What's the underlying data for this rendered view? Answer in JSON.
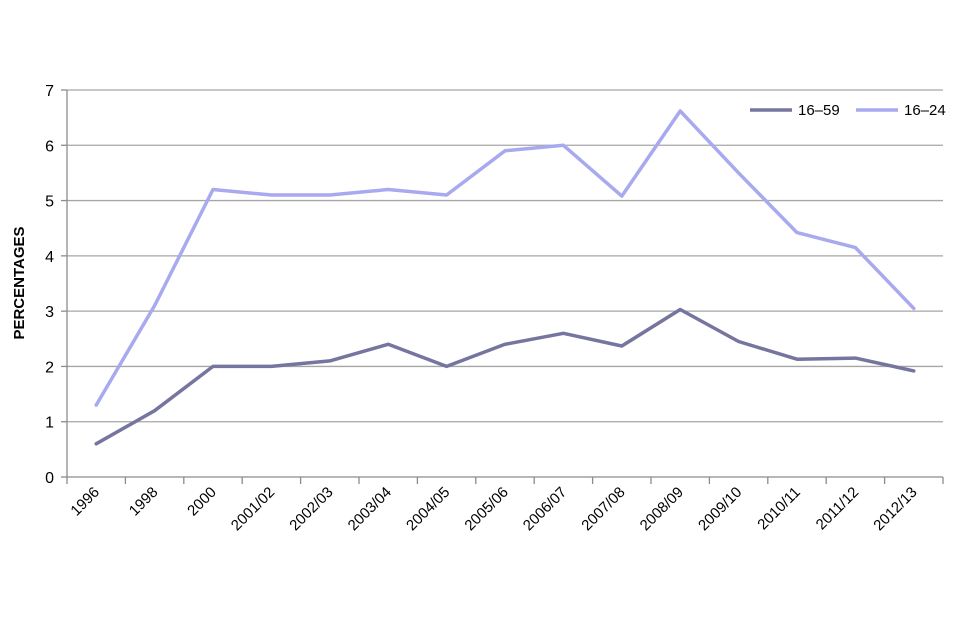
{
  "chart_data": {
    "type": "line",
    "title": "",
    "xlabel": "",
    "ylabel": "PERCENTAGES",
    "ylim": [
      0,
      7
    ],
    "yticks": [
      0,
      1,
      2,
      3,
      4,
      5,
      6,
      7
    ],
    "grid": true,
    "legend_position": "top-right",
    "categories": [
      "1996",
      "1998",
      "2000",
      "2001/02",
      "2002/03",
      "2003/04",
      "2004/05",
      "2005/06",
      "2006/07",
      "2007/08",
      "2008/09",
      "2009/10",
      "2010/11",
      "2011/12",
      "2012/13"
    ],
    "series": [
      {
        "name": "16–59",
        "color": "#7575a0",
        "values": [
          0.6,
          1.2,
          2.0,
          2.0,
          2.1,
          2.4,
          2.0,
          2.4,
          2.6,
          2.37,
          3.03,
          2.45,
          2.13,
          2.15,
          1.92
        ]
      },
      {
        "name": "16–24",
        "color": "#a9a9f0",
        "values": [
          1.3,
          3.1,
          5.2,
          5.1,
          5.1,
          5.2,
          5.1,
          5.9,
          6.0,
          5.08,
          6.62,
          5.5,
          4.42,
          4.15,
          3.05
        ]
      }
    ]
  }
}
